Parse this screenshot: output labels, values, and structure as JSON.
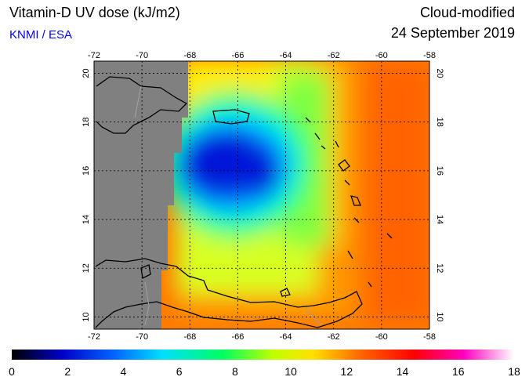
{
  "header": {
    "title": "Vitamin-D UV dose (kJ/m2)",
    "source": "KNMI / ESA",
    "product": "Cloud-modified",
    "date": "24 September 2019"
  },
  "map": {
    "lon_range": [
      -72,
      -58
    ],
    "lat_range": [
      9.5,
      20.5
    ],
    "lon_ticks": [
      "-72",
      "-70",
      "-68",
      "-66",
      "-64",
      "-62",
      "-60",
      "-58"
    ],
    "lat_ticks": [
      "10",
      "12",
      "14",
      "16",
      "18",
      "20"
    ],
    "grid": true,
    "no_data_color": "#808080"
  },
  "colorbar": {
    "min": 0,
    "max": 18,
    "tick_labels": [
      "0",
      "2",
      "4",
      "6",
      "8",
      "10",
      "12",
      "14",
      "16",
      "18"
    ],
    "colors": [
      "#000000",
      "#0000c8",
      "#0060ff",
      "#00e0ff",
      "#00ff60",
      "#c0ff00",
      "#ffe000",
      "#ff6000",
      "#ff0000",
      "#ff00c0",
      "#ffffff"
    ]
  }
}
